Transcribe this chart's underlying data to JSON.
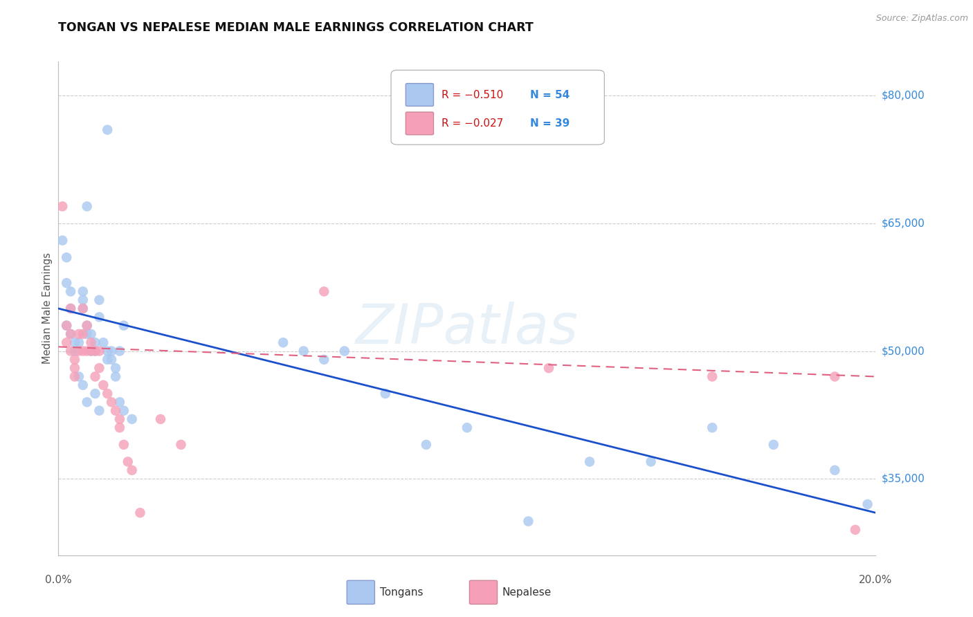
{
  "title": "TONGAN VS NEPALESE MEDIAN MALE EARNINGS CORRELATION CHART",
  "source": "Source: ZipAtlas.com",
  "ylabel": "Median Male Earnings",
  "ytick_labels": [
    "$80,000",
    "$65,000",
    "$50,000",
    "$35,000"
  ],
  "ytick_values": [
    80000,
    65000,
    50000,
    35000
  ],
  "ymin": 26000,
  "ymax": 84000,
  "xmin": 0.0,
  "xmax": 0.2,
  "watermark": "ZIPatlas",
  "legend_r1": "-0.510",
  "legend_n1": "54",
  "legend_r2": "-0.027",
  "legend_n2": "39",
  "tongan_color": "#aac8f0",
  "nepalese_color": "#f5a0b8",
  "line_blue": "#1a50cc",
  "line_pink": "#e06080",
  "grid_color": "#cccccc",
  "right_label_color": "#3388dd",
  "tongan_x": [
    0.001,
    0.012,
    0.007,
    0.002,
    0.002,
    0.003,
    0.003,
    0.002,
    0.003,
    0.004,
    0.004,
    0.005,
    0.006,
    0.006,
    0.006,
    0.007,
    0.007,
    0.008,
    0.009,
    0.009,
    0.01,
    0.01,
    0.011,
    0.012,
    0.013,
    0.014,
    0.015,
    0.016,
    0.005,
    0.006,
    0.007,
    0.008,
    0.009,
    0.01,
    0.012,
    0.013,
    0.014,
    0.015,
    0.016,
    0.018,
    0.055,
    0.06,
    0.065,
    0.07,
    0.08,
    0.09,
    0.1,
    0.115,
    0.13,
    0.145,
    0.16,
    0.175,
    0.19,
    0.198
  ],
  "tongan_y": [
    63000,
    76000,
    67000,
    61000,
    58000,
    57000,
    55000,
    53000,
    52000,
    51000,
    50000,
    51000,
    57000,
    56000,
    55000,
    53000,
    52000,
    52000,
    51000,
    50000,
    56000,
    54000,
    51000,
    49000,
    50000,
    48000,
    50000,
    53000,
    47000,
    46000,
    44000,
    50000,
    45000,
    43000,
    50000,
    49000,
    47000,
    44000,
    43000,
    42000,
    51000,
    50000,
    49000,
    50000,
    45000,
    39000,
    41000,
    30000,
    37000,
    37000,
    41000,
    39000,
    36000,
    32000
  ],
  "nepalese_x": [
    0.001,
    0.002,
    0.002,
    0.003,
    0.003,
    0.003,
    0.004,
    0.004,
    0.004,
    0.005,
    0.005,
    0.006,
    0.006,
    0.006,
    0.007,
    0.007,
    0.008,
    0.008,
    0.009,
    0.009,
    0.01,
    0.01,
    0.011,
    0.012,
    0.013,
    0.014,
    0.015,
    0.015,
    0.016,
    0.017,
    0.018,
    0.02,
    0.025,
    0.03,
    0.065,
    0.12,
    0.16,
    0.19,
    0.195
  ],
  "nepalese_y": [
    67000,
    53000,
    51000,
    55000,
    52000,
    50000,
    49000,
    48000,
    47000,
    52000,
    50000,
    55000,
    52000,
    50000,
    53000,
    50000,
    51000,
    50000,
    50000,
    47000,
    50000,
    48000,
    46000,
    45000,
    44000,
    43000,
    42000,
    41000,
    39000,
    37000,
    36000,
    31000,
    42000,
    39000,
    57000,
    48000,
    47000,
    47000,
    29000
  ],
  "blue_line_x": [
    0.0,
    0.2
  ],
  "blue_line_y": [
    55000,
    31000
  ],
  "pink_line_x": [
    0.0,
    0.2
  ],
  "pink_line_y": [
    50500,
    47000
  ]
}
